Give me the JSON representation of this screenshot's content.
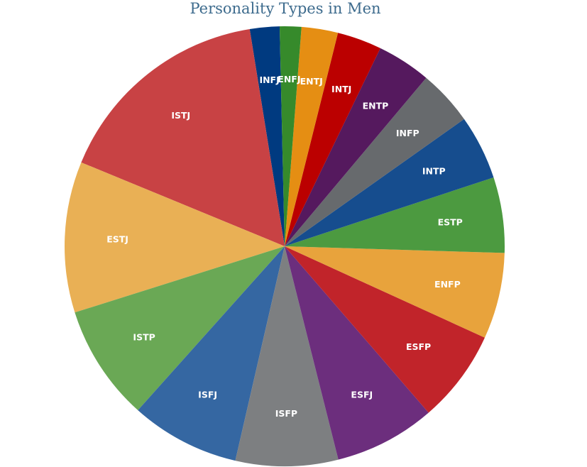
{
  "chart_data": {
    "type": "pie",
    "title": "Personality Types in Men",
    "start_angle_deg": 91.3,
    "direction": "counterclockwise",
    "slices": [
      {
        "label": "INFJ",
        "value": 2.2,
        "color": "#003a80"
      },
      {
        "label": "ISTJ",
        "value": 16.4,
        "color": "#c84244"
      },
      {
        "label": "ESTJ",
        "value": 11.2,
        "color": "#e9b055"
      },
      {
        "label": "ISTP",
        "value": 8.6,
        "color": "#6aa855"
      },
      {
        "label": "ISFJ",
        "value": 8.1,
        "color": "#3567a2"
      },
      {
        "label": "ISFP",
        "value": 7.6,
        "color": "#7d7f81"
      },
      {
        "label": "ESFJ",
        "value": 7.5,
        "color": "#6c2e7d"
      },
      {
        "label": "ESFP",
        "value": 6.9,
        "color": "#c1242a"
      },
      {
        "label": "ENFP",
        "value": 6.4,
        "color": "#e8a33c"
      },
      {
        "label": "ESTP",
        "value": 5.6,
        "color": "#4c9a40"
      },
      {
        "label": "INTP",
        "value": 4.8,
        "color": "#164d8e"
      },
      {
        "label": "INFP",
        "value": 4.1,
        "color": "#676a6d"
      },
      {
        "label": "ENTP",
        "value": 4.0,
        "color": "#55195e"
      },
      {
        "label": "INTJ",
        "value": 3.3,
        "color": "#bb0000"
      },
      {
        "label": "ENTJ",
        "value": 2.7,
        "color": "#e58e13"
      },
      {
        "label": "ENFJ",
        "value": 1.6,
        "color": "#368a2b"
      }
    ]
  }
}
